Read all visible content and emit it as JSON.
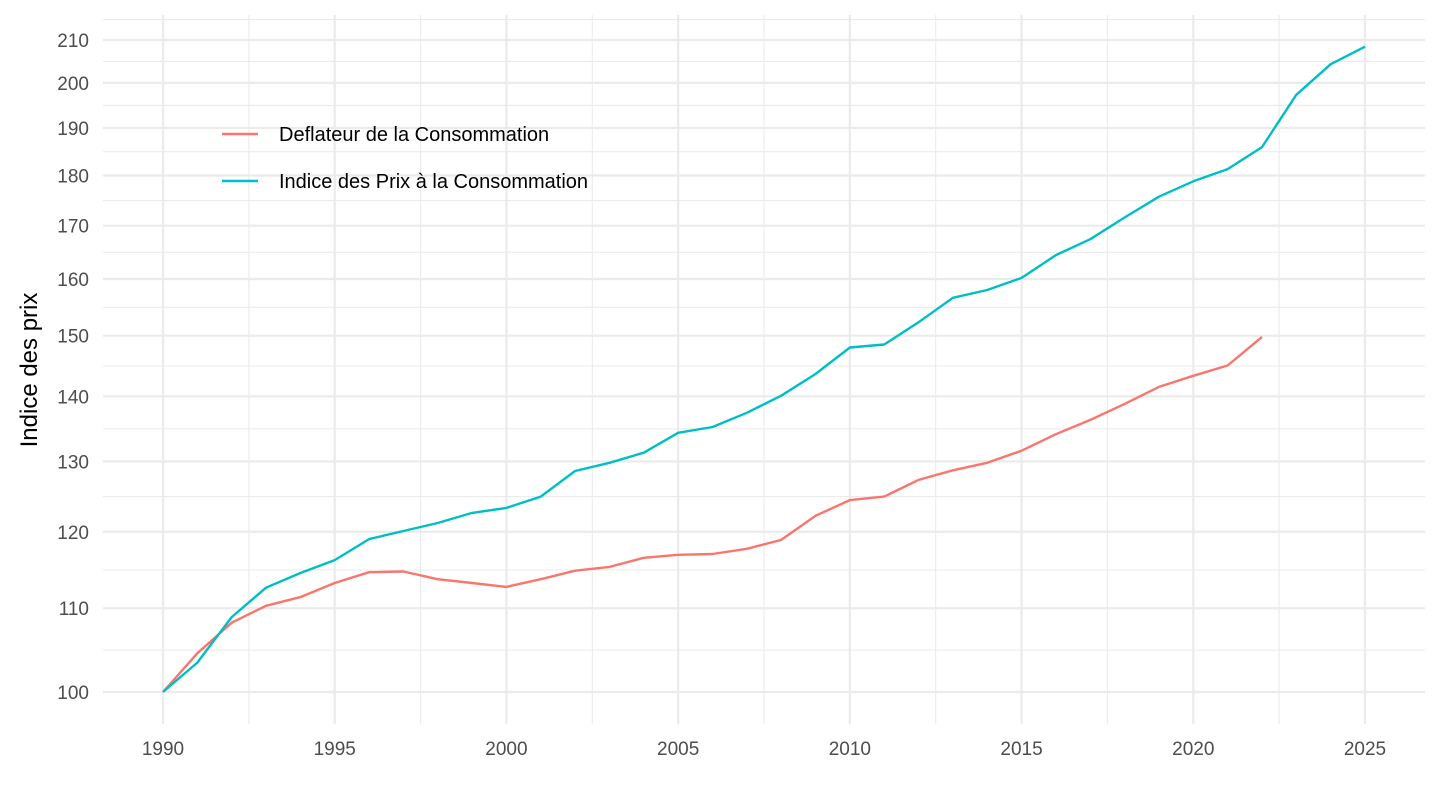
{
  "chart_data": {
    "type": "line",
    "title": "",
    "xlabel": "",
    "ylabel": "Indice des prix",
    "y_scale": "log",
    "xlim": [
      1988.3,
      2026.8
    ],
    "ylim": [
      95,
      216
    ],
    "x_ticks": [
      1990,
      1995,
      2000,
      2005,
      2010,
      2015,
      2020,
      2025
    ],
    "x_tick_labels": [
      "1990",
      "1995",
      "2000",
      "2005",
      "2010",
      "2015",
      "2020",
      "2025"
    ],
    "y_ticks": [
      100,
      110,
      120,
      130,
      140,
      150,
      160,
      170,
      180,
      190,
      200,
      210
    ],
    "y_tick_labels": [
      "100",
      "110",
      "120",
      "130",
      "140",
      "150",
      "160",
      "170",
      "180",
      "190",
      "200",
      "210"
    ],
    "grid": true,
    "legend": {
      "position": "top-left",
      "inside": true
    },
    "series": [
      {
        "name": "Deflateur de la Consommation",
        "color": "#f8766d",
        "x": [
          1990,
          1991,
          1992,
          1993,
          1994,
          1995,
          1996,
          1997,
          1998,
          1999,
          2000,
          2001,
          2002,
          2003,
          2004,
          2005,
          2006,
          2007,
          2008,
          2009,
          2010,
          2011,
          2012,
          2013,
          2014,
          2015,
          2016,
          2017,
          2018,
          2019,
          2020,
          2021,
          2022
        ],
        "values": [
          100,
          104.5,
          108.2,
          110.3,
          111.4,
          113.2,
          114.6,
          114.7,
          113.7,
          113.2,
          112.7,
          113.7,
          114.8,
          115.3,
          116.5,
          116.9,
          117.0,
          117.7,
          118.9,
          122.2,
          124.4,
          124.9,
          127.3,
          128.7,
          129.8,
          131.6,
          134.1,
          136.3,
          138.8,
          141.5,
          143.3,
          145.0,
          149.8
        ]
      },
      {
        "name": "Indice des Prix à la Consommation",
        "color": "#00bfc4",
        "x": [
          1990,
          1991,
          1992,
          1993,
          1994,
          1995,
          1996,
          1997,
          1998,
          1999,
          2000,
          2001,
          2002,
          2003,
          2004,
          2005,
          2006,
          2007,
          2008,
          2009,
          2010,
          2011,
          2012,
          2013,
          2014,
          2015,
          2016,
          2017,
          2018,
          2019,
          2020,
          2021,
          2022,
          2023,
          2024,
          2025
        ],
        "values": [
          100,
          103.4,
          108.9,
          112.6,
          114.5,
          116.2,
          119.0,
          120.1,
          121.2,
          122.6,
          123.3,
          124.9,
          128.6,
          129.8,
          131.3,
          134.3,
          135.2,
          137.4,
          140.1,
          143.6,
          148.0,
          148.5,
          152.3,
          156.6,
          158.0,
          160.2,
          164.4,
          167.4,
          171.6,
          175.7,
          178.8,
          181.3,
          185.9,
          197.3,
          204.3,
          208.4
        ]
      }
    ]
  }
}
